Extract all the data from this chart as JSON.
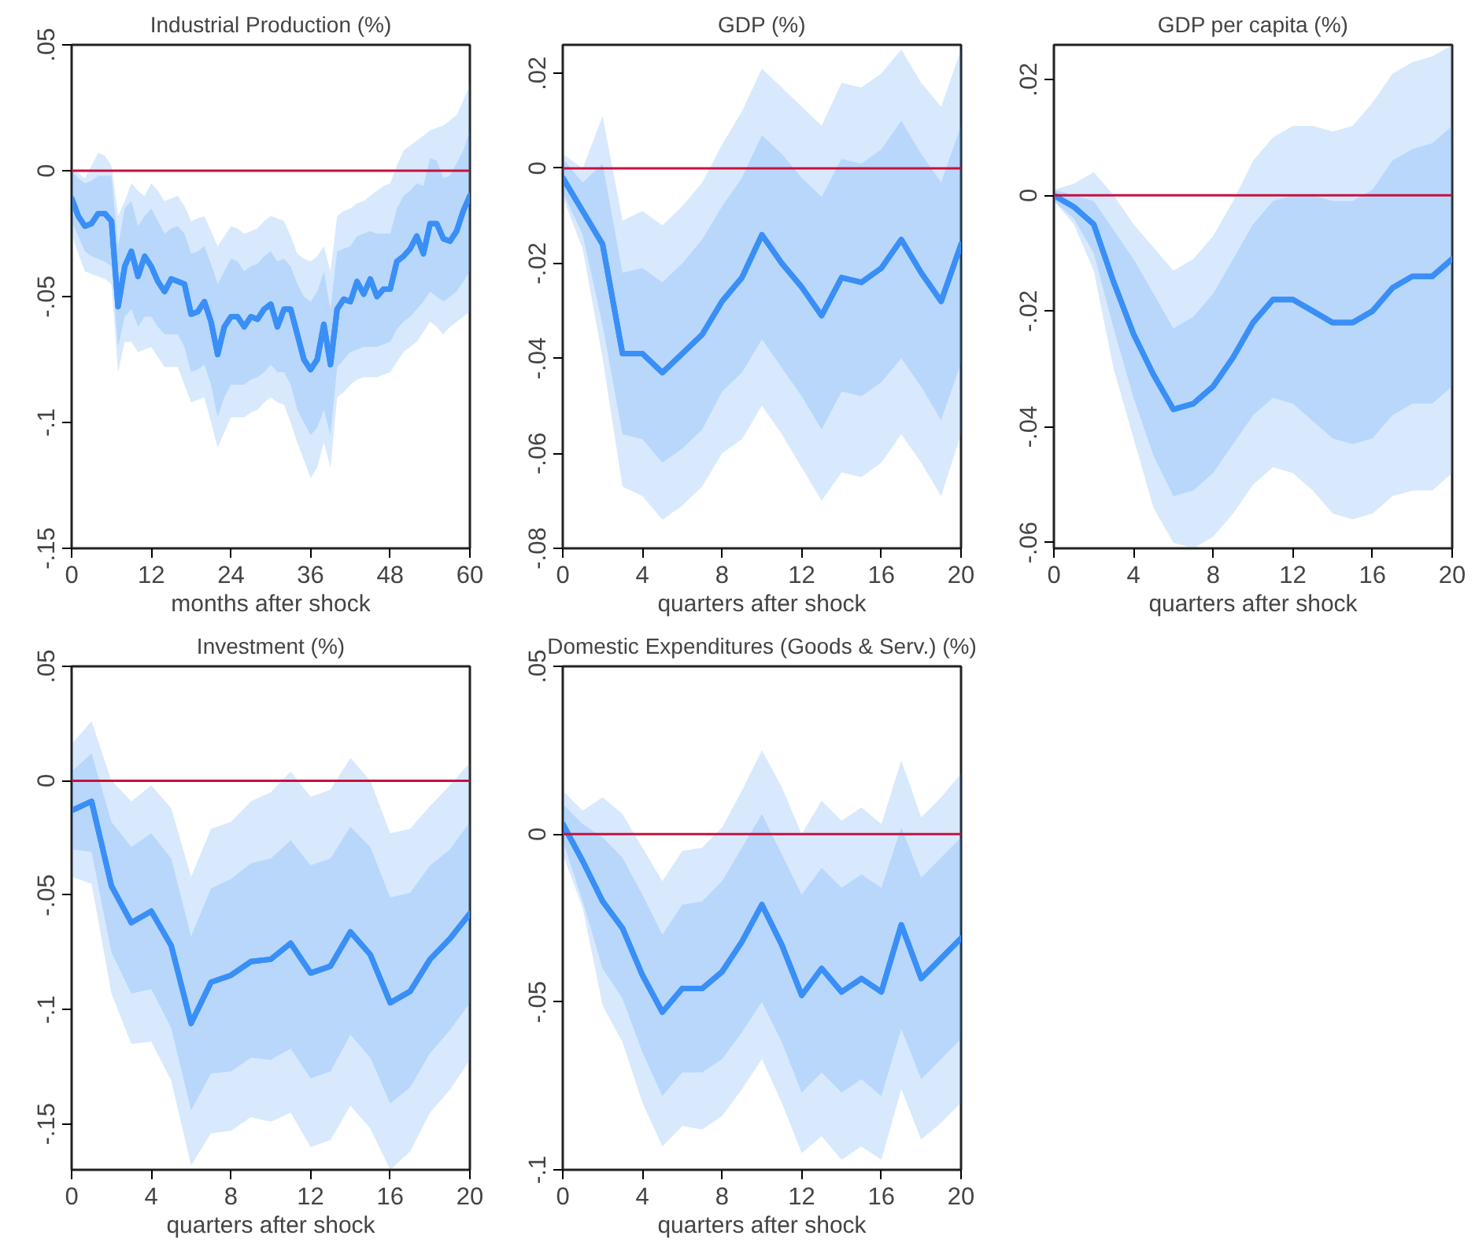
{
  "chart_data": [
    {
      "type": "line",
      "title": "Industrial Production (%)",
      "xlabel": "months after shock",
      "x": [
        0,
        1,
        2,
        3,
        4,
        5,
        6,
        7,
        8,
        9,
        10,
        11,
        12,
        13,
        14,
        15,
        16,
        17,
        18,
        19,
        20,
        21,
        22,
        23,
        24,
        25,
        26,
        27,
        28,
        29,
        30,
        31,
        32,
        33,
        34,
        35,
        36,
        37,
        38,
        39,
        40,
        41,
        42,
        43,
        44,
        45,
        46,
        47,
        48,
        49,
        50,
        51,
        52,
        53,
        54,
        55,
        56,
        57,
        58,
        59,
        60
      ],
      "xlim": [
        0,
        60
      ],
      "xticks": [
        0,
        12,
        24,
        36,
        48,
        60
      ],
      "ylim": [
        -0.15,
        0.05
      ],
      "yticks": [
        {
          "value": -0.15,
          "label": "-.15"
        },
        {
          "value": -0.1,
          "label": "-.1"
        },
        {
          "value": -0.05,
          "label": "-.05"
        },
        {
          "value": 0,
          "label": "0"
        },
        {
          "value": 0.05,
          "label": ".05"
        }
      ],
      "grid": false,
      "ref_lines": [
        {
          "axis": "y",
          "value": 0,
          "color": "#c8103e"
        }
      ],
      "series": [
        {
          "color": "#3a8ff7",
          "values": [
            -0.011,
            -0.018,
            -0.022,
            -0.021,
            -0.017,
            -0.017,
            -0.02,
            -0.054,
            -0.038,
            -0.032,
            -0.042,
            -0.034,
            -0.038,
            -0.044,
            -0.048,
            -0.043,
            -0.044,
            -0.045,
            -0.057,
            -0.056,
            -0.052,
            -0.06,
            -0.073,
            -0.062,
            -0.058,
            -0.058,
            -0.062,
            -0.058,
            -0.059,
            -0.055,
            -0.053,
            -0.062,
            -0.055,
            -0.055,
            -0.065,
            -0.075,
            -0.079,
            -0.075,
            -0.061,
            -0.077,
            -0.055,
            -0.051,
            -0.052,
            -0.044,
            -0.049,
            -0.043,
            -0.05,
            -0.047,
            -0.047,
            -0.036,
            -0.034,
            -0.031,
            -0.026,
            -0.033,
            -0.021,
            -0.021,
            -0.027,
            -0.028,
            -0.024,
            -0.016,
            -0.01
          ],
          "upper": [
            0,
            -0.001,
            -0.003,
            0.002,
            0.007,
            0.006,
            0.002,
            -0.018,
            -0.012,
            -0.005,
            -0.008,
            -0.01,
            -0.005,
            -0.008,
            -0.012,
            -0.011,
            -0.01,
            -0.014,
            -0.02,
            -0.019,
            -0.018,
            -0.024,
            -0.03,
            -0.026,
            -0.022,
            -0.023,
            -0.025,
            -0.024,
            -0.023,
            -0.02,
            -0.018,
            -0.019,
            -0.02,
            -0.026,
            -0.033,
            -0.035,
            -0.036,
            -0.034,
            -0.03,
            -0.04,
            -0.018,
            -0.016,
            -0.015,
            -0.013,
            -0.012,
            -0.01,
            -0.008,
            -0.006,
            -0.005,
            0.002,
            0.008,
            0.01,
            0.012,
            0.014,
            0.016,
            0.017,
            0.018,
            0.02,
            0.022,
            0.028,
            0.034
          ],
          "lower": [
            -0.025,
            -0.033,
            -0.04,
            -0.041,
            -0.042,
            -0.043,
            -0.045,
            -0.08,
            -0.068,
            -0.068,
            -0.072,
            -0.071,
            -0.07,
            -0.074,
            -0.078,
            -0.078,
            -0.078,
            -0.085,
            -0.092,
            -0.091,
            -0.09,
            -0.1,
            -0.11,
            -0.104,
            -0.098,
            -0.098,
            -0.098,
            -0.096,
            -0.095,
            -0.092,
            -0.09,
            -0.092,
            -0.093,
            -0.1,
            -0.108,
            -0.115,
            -0.122,
            -0.118,
            -0.108,
            -0.118,
            -0.09,
            -0.088,
            -0.085,
            -0.083,
            -0.082,
            -0.082,
            -0.082,
            -0.081,
            -0.08,
            -0.076,
            -0.072,
            -0.07,
            -0.068,
            -0.064,
            -0.06,
            -0.062,
            -0.065,
            -0.062,
            -0.06,
            -0.058,
            -0.056
          ]
        },
        {
          "color": "#3a8ff7",
          "values": [
            -0.011,
            -0.018,
            -0.022,
            -0.021,
            -0.017,
            -0.017,
            -0.02,
            -0.054,
            -0.038,
            -0.032,
            -0.042,
            -0.034,
            -0.038,
            -0.044,
            -0.048,
            -0.043,
            -0.044,
            -0.045,
            -0.057,
            -0.056,
            -0.052,
            -0.06,
            -0.073,
            -0.062,
            -0.058,
            -0.058,
            -0.062,
            -0.058,
            -0.059,
            -0.055,
            -0.053,
            -0.062,
            -0.055,
            -0.055,
            -0.065,
            -0.075,
            -0.079,
            -0.075,
            -0.061,
            -0.077,
            -0.055,
            -0.051,
            -0.052,
            -0.044,
            -0.049,
            -0.043,
            -0.05,
            -0.047,
            -0.047,
            -0.036,
            -0.034,
            -0.031,
            -0.026,
            -0.033,
            -0.021,
            -0.021,
            -0.027,
            -0.028,
            -0.024,
            -0.016,
            -0.01
          ],
          "upper": [
            0,
            -0.003,
            -0.005,
            -0.004,
            -0.002,
            -0.002,
            -0.002,
            -0.03,
            -0.015,
            -0.012,
            -0.022,
            -0.018,
            -0.015,
            -0.02,
            -0.025,
            -0.023,
            -0.022,
            -0.025,
            -0.033,
            -0.032,
            -0.03,
            -0.037,
            -0.045,
            -0.04,
            -0.035,
            -0.036,
            -0.04,
            -0.038,
            -0.037,
            -0.034,
            -0.032,
            -0.036,
            -0.035,
            -0.038,
            -0.045,
            -0.05,
            -0.052,
            -0.048,
            -0.04,
            -0.055,
            -0.032,
            -0.031,
            -0.03,
            -0.026,
            -0.025,
            -0.024,
            -0.025,
            -0.025,
            -0.025,
            -0.015,
            -0.01,
            -0.008,
            -0.005,
            -0.006,
            0.005,
            0.004,
            -0.003,
            -0.002,
            0.003,
            0.008,
            0.016
          ],
          "lower": [
            -0.02,
            -0.026,
            -0.032,
            -0.034,
            -0.035,
            -0.036,
            -0.038,
            -0.07,
            -0.058,
            -0.055,
            -0.062,
            -0.058,
            -0.058,
            -0.062,
            -0.065,
            -0.065,
            -0.065,
            -0.07,
            -0.08,
            -0.079,
            -0.077,
            -0.085,
            -0.098,
            -0.09,
            -0.085,
            -0.085,
            -0.085,
            -0.083,
            -0.082,
            -0.08,
            -0.077,
            -0.08,
            -0.08,
            -0.085,
            -0.095,
            -0.1,
            -0.105,
            -0.102,
            -0.095,
            -0.105,
            -0.078,
            -0.075,
            -0.072,
            -0.071,
            -0.07,
            -0.07,
            -0.07,
            -0.069,
            -0.068,
            -0.063,
            -0.06,
            -0.058,
            -0.055,
            -0.052,
            -0.048,
            -0.05,
            -0.052,
            -0.05,
            -0.048,
            -0.044,
            -0.04
          ]
        }
      ]
    },
    {
      "type": "line",
      "title": "GDP (%)",
      "xlabel": "quarters after shock",
      "x": [
        0,
        1,
        2,
        3,
        4,
        5,
        6,
        7,
        8,
        9,
        10,
        11,
        12,
        13,
        14,
        15,
        16,
        17,
        18,
        19,
        20
      ],
      "xlim": [
        0,
        20
      ],
      "xticks": [
        0,
        4,
        8,
        12,
        16,
        20
      ],
      "ylim": [
        -0.08,
        0.026
      ],
      "yticks": [
        {
          "value": -0.08,
          "label": "-.08"
        },
        {
          "value": -0.06,
          "label": "-.06"
        },
        {
          "value": -0.04,
          "label": "-.04"
        },
        {
          "value": -0.02,
          "label": "-.02"
        },
        {
          "value": 0,
          "label": "0"
        },
        {
          "value": 0.02,
          "label": ".02"
        }
      ],
      "grid": false,
      "ref_lines": [
        {
          "axis": "y",
          "value": 0,
          "color": "#c8103e"
        }
      ],
      "series": [
        {
          "color": "#3a8ff7",
          "values": [
            -0.002,
            -0.009,
            -0.016,
            -0.039,
            -0.039,
            -0.043,
            -0.039,
            -0.035,
            -0.028,
            -0.023,
            -0.014,
            -0.02,
            -0.025,
            -0.031,
            -0.023,
            -0.024,
            -0.021,
            -0.015,
            -0.022,
            -0.028,
            -0.016
          ],
          "upper": [
            0.003,
            0.0,
            0.011,
            -0.011,
            -0.009,
            -0.012,
            -0.008,
            -0.003,
            0.005,
            0.012,
            0.021,
            0.017,
            0.013,
            0.009,
            0.018,
            0.017,
            0.02,
            0.025,
            0.018,
            0.013,
            0.025
          ],
          "lower": [
            -0.006,
            -0.017,
            -0.04,
            -0.067,
            -0.069,
            -0.074,
            -0.071,
            -0.067,
            -0.06,
            -0.057,
            -0.05,
            -0.056,
            -0.063,
            -0.07,
            -0.064,
            -0.065,
            -0.062,
            -0.056,
            -0.062,
            -0.069,
            -0.056
          ]
        },
        {
          "color": "#3a8ff7",
          "values": [
            -0.002,
            -0.009,
            -0.016,
            -0.039,
            -0.039,
            -0.043,
            -0.039,
            -0.035,
            -0.028,
            -0.023,
            -0.014,
            -0.02,
            -0.025,
            -0.031,
            -0.023,
            -0.024,
            -0.021,
            -0.015,
            -0.022,
            -0.028,
            -0.016
          ],
          "upper": [
            0.002,
            -0.003,
            0.001,
            -0.022,
            -0.021,
            -0.024,
            -0.02,
            -0.015,
            -0.008,
            -0.002,
            0.007,
            0.003,
            -0.002,
            -0.006,
            0.002,
            0.001,
            0.004,
            0.01,
            0.003,
            -0.003,
            0.009
          ],
          "lower": [
            -0.005,
            -0.014,
            -0.033,
            -0.056,
            -0.057,
            -0.062,
            -0.059,
            -0.055,
            -0.047,
            -0.043,
            -0.036,
            -0.042,
            -0.048,
            -0.055,
            -0.047,
            -0.048,
            -0.045,
            -0.04,
            -0.046,
            -0.053,
            -0.041
          ]
        }
      ]
    },
    {
      "type": "line",
      "title": "GDP per capita (%)",
      "xlabel": "quarters after shock",
      "x": [
        0,
        1,
        2,
        3,
        4,
        5,
        6,
        7,
        8,
        9,
        10,
        11,
        12,
        13,
        14,
        15,
        16,
        17,
        18,
        19,
        20
      ],
      "xlim": [
        0,
        20
      ],
      "xticks": [
        0,
        4,
        8,
        12,
        16,
        20
      ],
      "ylim": [
        -0.061,
        0.026
      ],
      "yticks": [
        {
          "value": -0.06,
          "label": "-.06"
        },
        {
          "value": -0.04,
          "label": "-.04"
        },
        {
          "value": -0.02,
          "label": "-.02"
        },
        {
          "value": 0,
          "label": "0"
        },
        {
          "value": 0.02,
          "label": ".02"
        }
      ],
      "grid": false,
      "ref_lines": [
        {
          "axis": "y",
          "value": 0,
          "color": "#c8103e"
        }
      ],
      "series": [
        {
          "color": "#3a8ff7",
          "values": [
            0,
            -0.002,
            -0.005,
            -0.015,
            -0.024,
            -0.031,
            -0.037,
            -0.036,
            -0.033,
            -0.028,
            -0.022,
            -0.018,
            -0.018,
            -0.02,
            -0.022,
            -0.022,
            -0.02,
            -0.016,
            -0.014,
            -0.014,
            -0.011
          ],
          "upper": [
            0.001,
            0.002,
            0.004,
            0.0,
            -0.005,
            -0.009,
            -0.013,
            -0.011,
            -0.007,
            -0.001,
            0.006,
            0.01,
            0.012,
            0.012,
            0.011,
            0.012,
            0.016,
            0.021,
            0.023,
            0.024,
            0.026
          ],
          "lower": [
            -0.001,
            -0.005,
            -0.013,
            -0.03,
            -0.042,
            -0.054,
            -0.06,
            -0.061,
            -0.059,
            -0.055,
            -0.05,
            -0.047,
            -0.048,
            -0.051,
            -0.055,
            -0.056,
            -0.055,
            -0.052,
            -0.051,
            -0.051,
            -0.048
          ]
        },
        {
          "color": "#3a8ff7",
          "values": [
            0,
            -0.002,
            -0.005,
            -0.015,
            -0.024,
            -0.031,
            -0.037,
            -0.036,
            -0.033,
            -0.028,
            -0.022,
            -0.018,
            -0.018,
            -0.02,
            -0.022,
            -0.022,
            -0.02,
            -0.016,
            -0.014,
            -0.014,
            -0.011
          ],
          "upper": [
            0.001,
            0.0,
            -0.001,
            -0.006,
            -0.011,
            -0.017,
            -0.023,
            -0.021,
            -0.017,
            -0.011,
            -0.005,
            -0.001,
            0.0,
            0.0,
            -0.001,
            -0.001,
            0.001,
            0.006,
            0.008,
            0.009,
            0.012
          ],
          "lower": [
            -0.001,
            -0.004,
            -0.01,
            -0.023,
            -0.035,
            -0.045,
            -0.052,
            -0.051,
            -0.048,
            -0.043,
            -0.038,
            -0.035,
            -0.036,
            -0.039,
            -0.042,
            -0.043,
            -0.042,
            -0.038,
            -0.036,
            -0.036,
            -0.033
          ]
        }
      ]
    },
    {
      "type": "line",
      "title": "Investment (%)",
      "xlabel": "quarters after shock",
      "x": [
        0,
        1,
        2,
        3,
        4,
        5,
        6,
        7,
        8,
        9,
        10,
        11,
        12,
        13,
        14,
        15,
        16,
        17,
        18,
        19,
        20
      ],
      "xlim": [
        0,
        20
      ],
      "xticks": [
        0,
        4,
        8,
        12,
        16,
        20
      ],
      "ylim": [
        -0.17,
        0.05
      ],
      "yticks": [
        {
          "value": -0.15,
          "label": "-.15"
        },
        {
          "value": -0.1,
          "label": "-.1"
        },
        {
          "value": -0.05,
          "label": "-.05"
        },
        {
          "value": 0,
          "label": "0"
        },
        {
          "value": 0.05,
          "label": ".05"
        }
      ],
      "grid": false,
      "ref_lines": [
        {
          "axis": "y",
          "value": 0,
          "color": "#c8103e"
        }
      ],
      "series": [
        {
          "color": "#3a8ff7",
          "values": [
            -0.013,
            -0.009,
            -0.046,
            -0.062,
            -0.057,
            -0.072,
            -0.106,
            -0.088,
            -0.085,
            -0.079,
            -0.078,
            -0.071,
            -0.084,
            -0.081,
            -0.066,
            -0.076,
            -0.097,
            -0.092,
            -0.078,
            -0.069,
            -0.058
          ],
          "upper": [
            0.016,
            0.026,
            0.0,
            -0.009,
            -0.002,
            -0.012,
            -0.042,
            -0.021,
            -0.018,
            -0.009,
            -0.005,
            0.004,
            -0.007,
            -0.004,
            0.01,
            0.0,
            -0.023,
            -0.021,
            -0.011,
            -0.002,
            0.008
          ],
          "lower": [
            -0.042,
            -0.045,
            -0.093,
            -0.115,
            -0.114,
            -0.131,
            -0.168,
            -0.154,
            -0.153,
            -0.147,
            -0.149,
            -0.145,
            -0.16,
            -0.157,
            -0.142,
            -0.152,
            -0.17,
            -0.162,
            -0.145,
            -0.135,
            -0.122
          ]
        },
        {
          "color": "#3a8ff7",
          "values": [
            -0.013,
            -0.009,
            -0.046,
            -0.062,
            -0.057,
            -0.072,
            -0.106,
            -0.088,
            -0.085,
            -0.079,
            -0.078,
            -0.071,
            -0.084,
            -0.081,
            -0.066,
            -0.076,
            -0.097,
            -0.092,
            -0.078,
            -0.069,
            -0.058
          ],
          "upper": [
            0.004,
            0.012,
            -0.018,
            -0.029,
            -0.023,
            -0.034,
            -0.068,
            -0.047,
            -0.043,
            -0.036,
            -0.034,
            -0.026,
            -0.037,
            -0.034,
            -0.02,
            -0.029,
            -0.051,
            -0.049,
            -0.037,
            -0.03,
            -0.018
          ],
          "lower": [
            -0.03,
            -0.031,
            -0.075,
            -0.093,
            -0.091,
            -0.108,
            -0.144,
            -0.128,
            -0.127,
            -0.121,
            -0.122,
            -0.117,
            -0.13,
            -0.127,
            -0.111,
            -0.121,
            -0.141,
            -0.134,
            -0.119,
            -0.109,
            -0.097
          ]
        }
      ]
    },
    {
      "type": "line",
      "title": "Domestic Expenditures (Goods & Serv.) (%)",
      "xlabel": "quarters after shock",
      "x": [
        0,
        1,
        2,
        3,
        4,
        5,
        6,
        7,
        8,
        9,
        10,
        11,
        12,
        13,
        14,
        15,
        16,
        17,
        18,
        19,
        20
      ],
      "xlim": [
        0,
        20
      ],
      "xticks": [
        0,
        4,
        8,
        12,
        16,
        20
      ],
      "ylim": [
        -0.1,
        0.05
      ],
      "yticks": [
        {
          "value": -0.1,
          "label": "-.1"
        },
        {
          "value": -0.05,
          "label": "-.05"
        },
        {
          "value": 0,
          "label": "0"
        },
        {
          "value": 0.05,
          "label": ".05"
        }
      ],
      "grid": false,
      "ref_lines": [
        {
          "axis": "y",
          "value": 0,
          "color": "#c8103e"
        }
      ],
      "series": [
        {
          "color": "#3a8ff7",
          "values": [
            0.003,
            -0.008,
            -0.02,
            -0.028,
            -0.042,
            -0.053,
            -0.046,
            -0.046,
            -0.041,
            -0.032,
            -0.021,
            -0.033,
            -0.048,
            -0.04,
            -0.047,
            -0.043,
            -0.047,
            -0.027,
            -0.043,
            -0.037,
            -0.031
          ],
          "upper": [
            0.013,
            0.007,
            0.011,
            0.006,
            -0.004,
            -0.014,
            -0.005,
            -0.004,
            0.002,
            0.013,
            0.025,
            0.014,
            0.0,
            0.01,
            0.004,
            0.008,
            0.003,
            0.022,
            0.005,
            0.011,
            0.018
          ],
          "lower": [
            -0.006,
            -0.022,
            -0.051,
            -0.062,
            -0.08,
            -0.093,
            -0.087,
            -0.088,
            -0.084,
            -0.076,
            -0.067,
            -0.08,
            -0.095,
            -0.09,
            -0.097,
            -0.093,
            -0.097,
            -0.076,
            -0.091,
            -0.086,
            -0.08
          ]
        },
        {
          "color": "#3a8ff7",
          "values": [
            0.003,
            -0.008,
            -0.02,
            -0.028,
            -0.042,
            -0.053,
            -0.046,
            -0.046,
            -0.041,
            -0.032,
            -0.021,
            -0.033,
            -0.048,
            -0.04,
            -0.047,
            -0.043,
            -0.047,
            -0.027,
            -0.043,
            -0.037,
            -0.031
          ],
          "upper": [
            0.009,
            0.003,
            -0.001,
            -0.007,
            -0.018,
            -0.03,
            -0.021,
            -0.02,
            -0.014,
            -0.004,
            0.006,
            -0.006,
            -0.018,
            -0.01,
            -0.016,
            -0.012,
            -0.016,
            0.002,
            -0.013,
            -0.007,
            -0.001
          ],
          "lower": [
            -0.002,
            -0.02,
            -0.04,
            -0.049,
            -0.065,
            -0.078,
            -0.071,
            -0.071,
            -0.067,
            -0.059,
            -0.05,
            -0.062,
            -0.077,
            -0.071,
            -0.077,
            -0.073,
            -0.078,
            -0.058,
            -0.073,
            -0.067,
            -0.061
          ]
        }
      ]
    }
  ]
}
